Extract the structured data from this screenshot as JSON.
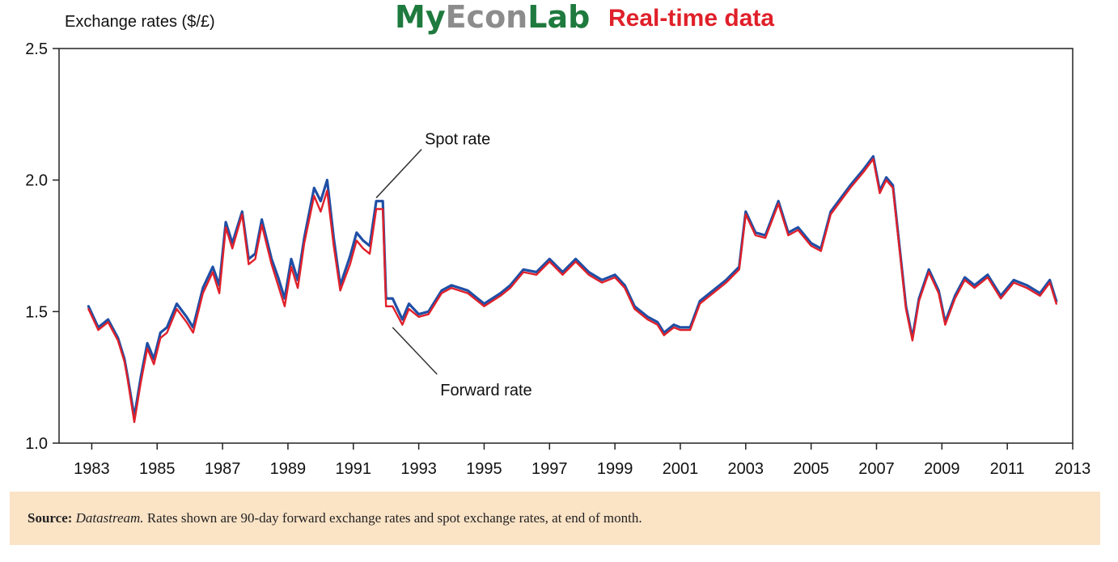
{
  "header": {
    "brand_part1": "My",
    "brand_part2": "Econ",
    "brand_part3": "Lab",
    "brand_tag": "Real-time data"
  },
  "colors": {
    "spot": "#1f4fa5",
    "forward": "#e0202a",
    "brand_green": "#1e7a3e",
    "brand_grey": "#8c8c8c",
    "brand_red": "#e0202a",
    "source_bg": "#fbe3c6"
  },
  "source": {
    "label": "Source:",
    "origin": "Datastream.",
    "text": "Rates shown are 90-day forward exchange rates and spot exchange rates, at end of month."
  },
  "chart_data": {
    "type": "line",
    "ylabel": "Exchange rates ($/£)",
    "xlabel": "",
    "ylim": [
      1.0,
      2.5
    ],
    "xlim": [
      1982.0,
      2013.0
    ],
    "yticks": [
      "1.0",
      "1.5",
      "2.0",
      "2.5"
    ],
    "xticks": [
      "1983",
      "1985",
      "1987",
      "1989",
      "1991",
      "1993",
      "1995",
      "1997",
      "1999",
      "2001",
      "2003",
      "2005",
      "2007",
      "2009",
      "2011",
      "2013"
    ],
    "grid": false,
    "annotations": [
      {
        "text": "Spot rate",
        "x": 1991.7,
        "y": 1.92
      },
      {
        "text": "Forward rate",
        "x": 1992.2,
        "y": 1.44
      }
    ],
    "series": [
      {
        "name": "Spot rate",
        "x": [
          1982.9,
          1983.2,
          1983.5,
          1983.8,
          1984.0,
          1984.1,
          1984.3,
          1984.5,
          1984.7,
          1984.9,
          1985.1,
          1985.3,
          1985.6,
          1985.9,
          1986.1,
          1986.4,
          1986.7,
          1986.9,
          1987.1,
          1987.3,
          1987.6,
          1987.8,
          1988.0,
          1988.2,
          1988.5,
          1988.7,
          1988.9,
          1989.1,
          1989.3,
          1989.5,
          1989.8,
          1990.0,
          1990.2,
          1990.4,
          1990.6,
          1990.9,
          1991.1,
          1991.3,
          1991.5,
          1991.7,
          1991.9,
          1992.0,
          1992.2,
          1992.5,
          1992.7,
          1993.0,
          1993.3,
          1993.7,
          1994.0,
          1994.5,
          1995.0,
          1995.5,
          1995.8,
          1996.2,
          1996.6,
          1997.0,
          1997.4,
          1997.8,
          1998.2,
          1998.6,
          1999.0,
          1999.3,
          1999.6,
          2000.0,
          2000.3,
          2000.5,
          2000.8,
          2001.0,
          2001.3,
          2001.6,
          2002.0,
          2002.4,
          2002.8,
          2003.0,
          2003.3,
          2003.6,
          2004.0,
          2004.3,
          2004.6,
          2005.0,
          2005.3,
          2005.6,
          2005.9,
          2006.2,
          2006.6,
          2006.9,
          2007.1,
          2007.3,
          2007.5,
          2007.7,
          2007.9,
          2008.1,
          2008.3,
          2008.6,
          2008.9,
          2009.1,
          2009.4,
          2009.7,
          2010.0,
          2010.4,
          2010.8,
          2011.2,
          2011.6,
          2012.0,
          2012.3,
          2012.5
        ],
        "y": [
          1.52,
          1.44,
          1.47,
          1.4,
          1.32,
          1.25,
          1.1,
          1.25,
          1.38,
          1.32,
          1.42,
          1.44,
          1.53,
          1.48,
          1.44,
          1.59,
          1.67,
          1.6,
          1.84,
          1.76,
          1.88,
          1.7,
          1.72,
          1.85,
          1.7,
          1.63,
          1.55,
          1.7,
          1.62,
          1.78,
          1.97,
          1.92,
          2.0,
          1.78,
          1.6,
          1.71,
          1.8,
          1.77,
          1.75,
          1.92,
          1.92,
          1.55,
          1.55,
          1.47,
          1.53,
          1.49,
          1.5,
          1.58,
          1.6,
          1.58,
          1.53,
          1.57,
          1.6,
          1.66,
          1.65,
          1.7,
          1.65,
          1.7,
          1.65,
          1.62,
          1.64,
          1.6,
          1.52,
          1.48,
          1.46,
          1.42,
          1.45,
          1.44,
          1.44,
          1.54,
          1.58,
          1.62,
          1.67,
          1.88,
          1.8,
          1.79,
          1.92,
          1.8,
          1.82,
          1.76,
          1.74,
          1.88,
          1.93,
          1.98,
          2.04,
          2.09,
          1.96,
          2.01,
          1.98,
          1.75,
          1.52,
          1.4,
          1.55,
          1.66,
          1.58,
          1.46,
          1.56,
          1.63,
          1.6,
          1.64,
          1.56,
          1.62,
          1.6,
          1.57,
          1.62,
          1.54
        ],
        "color": "#1f4fa5"
      },
      {
        "name": "Forward rate",
        "x": [
          1982.9,
          1983.2,
          1983.5,
          1983.8,
          1984.0,
          1984.1,
          1984.3,
          1984.5,
          1984.7,
          1984.9,
          1985.1,
          1985.3,
          1985.6,
          1985.9,
          1986.1,
          1986.4,
          1986.7,
          1986.9,
          1987.1,
          1987.3,
          1987.6,
          1987.8,
          1988.0,
          1988.2,
          1988.5,
          1988.7,
          1988.9,
          1989.1,
          1989.3,
          1989.5,
          1989.8,
          1990.0,
          1990.2,
          1990.4,
          1990.6,
          1990.9,
          1991.1,
          1991.3,
          1991.5,
          1991.7,
          1991.9,
          1992.0,
          1992.2,
          1992.5,
          1992.7,
          1993.0,
          1993.3,
          1993.7,
          1994.0,
          1994.5,
          1995.0,
          1995.5,
          1995.8,
          1996.2,
          1996.6,
          1997.0,
          1997.4,
          1997.8,
          1998.2,
          1998.6,
          1999.0,
          1999.3,
          1999.6,
          2000.0,
          2000.3,
          2000.5,
          2000.8,
          2001.0,
          2001.3,
          2001.6,
          2002.0,
          2002.4,
          2002.8,
          2003.0,
          2003.3,
          2003.6,
          2004.0,
          2004.3,
          2004.6,
          2005.0,
          2005.3,
          2005.6,
          2005.9,
          2006.2,
          2006.6,
          2006.9,
          2007.1,
          2007.3,
          2007.5,
          2007.7,
          2007.9,
          2008.1,
          2008.3,
          2008.6,
          2008.9,
          2009.1,
          2009.4,
          2009.7,
          2010.0,
          2010.4,
          2010.8,
          2011.2,
          2011.6,
          2012.0,
          2012.3,
          2012.5
        ],
        "y": [
          1.51,
          1.43,
          1.46,
          1.39,
          1.31,
          1.24,
          1.08,
          1.23,
          1.36,
          1.3,
          1.4,
          1.42,
          1.51,
          1.46,
          1.42,
          1.57,
          1.65,
          1.57,
          1.82,
          1.74,
          1.87,
          1.68,
          1.7,
          1.83,
          1.68,
          1.6,
          1.52,
          1.67,
          1.59,
          1.76,
          1.94,
          1.88,
          1.96,
          1.75,
          1.58,
          1.68,
          1.77,
          1.74,
          1.72,
          1.89,
          1.89,
          1.52,
          1.52,
          1.45,
          1.51,
          1.48,
          1.49,
          1.57,
          1.59,
          1.57,
          1.52,
          1.56,
          1.59,
          1.65,
          1.64,
          1.69,
          1.64,
          1.69,
          1.64,
          1.61,
          1.63,
          1.59,
          1.51,
          1.47,
          1.45,
          1.41,
          1.44,
          1.43,
          1.43,
          1.53,
          1.57,
          1.61,
          1.66,
          1.87,
          1.79,
          1.78,
          1.91,
          1.79,
          1.81,
          1.75,
          1.73,
          1.87,
          1.92,
          1.97,
          2.03,
          2.08,
          1.95,
          2.0,
          1.97,
          1.74,
          1.51,
          1.39,
          1.54,
          1.65,
          1.57,
          1.45,
          1.55,
          1.62,
          1.59,
          1.63,
          1.55,
          1.61,
          1.59,
          1.56,
          1.61,
          1.53
        ],
        "color": "#e0202a"
      }
    ]
  }
}
